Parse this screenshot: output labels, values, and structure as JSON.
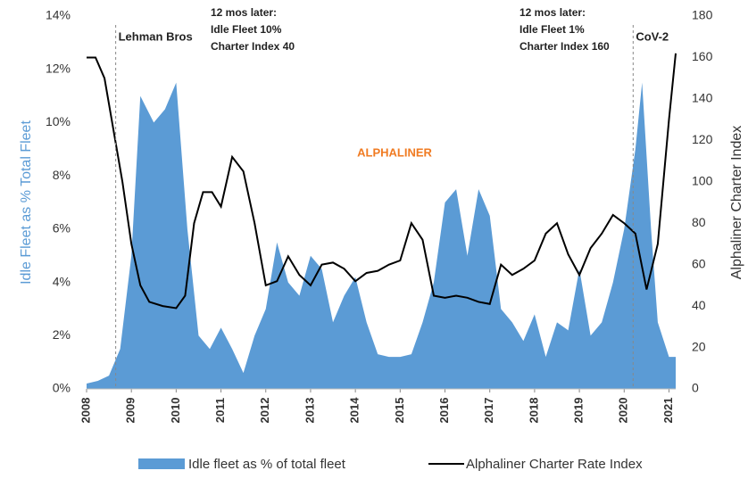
{
  "chart_data": {
    "type": "area-line",
    "y_label": "Idle Fleet as % Total Fleet",
    "y2_label": "Alphaliner Charter Index",
    "watermark": "ALPHALINER",
    "events": [
      {
        "label": "Lehman Bros",
        "x": 2008.65
      },
      {
        "label": "CoV-2",
        "x": 2020.2
      }
    ],
    "notes": [
      [
        "12 mos later:",
        "Idle Fleet 10%",
        "Charter Index 40"
      ],
      [
        "12 mos later:",
        "Idle Fleet 1%",
        "Charter Index 160"
      ]
    ],
    "xlim": [
      2008,
      2021.15
    ],
    "xticks": [
      2008,
      2009,
      2010,
      2011,
      2012,
      2013,
      2014,
      2015,
      2016,
      2017,
      2018,
      2019,
      2020,
      2021
    ],
    "ylim": [
      0,
      14
    ],
    "yticks": [
      {
        "value": 0,
        "label": "0%"
      },
      {
        "value": 2,
        "label": "2%"
      },
      {
        "value": 4,
        "label": "4%"
      },
      {
        "value": 6,
        "label": "6%"
      },
      {
        "value": 8,
        "label": "8%"
      },
      {
        "value": 10,
        "label": "10%"
      },
      {
        "value": 12,
        "label": "12%"
      },
      {
        "value": 14,
        "label": "14%"
      }
    ],
    "y2lim": [
      0,
      180
    ],
    "y2ticks": [
      0,
      20,
      40,
      60,
      80,
      100,
      120,
      140,
      160,
      180
    ],
    "series": [
      {
        "name": "Idle fleet as % of total fleet",
        "color": "#5b9bd5",
        "kind": "area",
        "x": [
          2008,
          2008.25,
          2008.5,
          2008.75,
          2009,
          2009.2,
          2009.5,
          2009.75,
          2010,
          2010.25,
          2010.5,
          2010.75,
          2011,
          2011.25,
          2011.5,
          2011.75,
          2012,
          2012.25,
          2012.5,
          2012.75,
          2013,
          2013.25,
          2013.5,
          2013.75,
          2014,
          2014.25,
          2014.5,
          2014.75,
          2015,
          2015.25,
          2015.5,
          2015.75,
          2016,
          2016.25,
          2016.5,
          2016.75,
          2017,
          2017.25,
          2017.5,
          2017.75,
          2018,
          2018.25,
          2018.5,
          2018.75,
          2019,
          2019.25,
          2019.5,
          2019.75,
          2020,
          2020.25,
          2020.4,
          2020.6,
          2020.75,
          2021,
          2021.15
        ],
        "values": [
          0.2,
          0.3,
          0.5,
          1.5,
          5,
          11,
          10,
          10.5,
          11.5,
          6,
          2,
          1.5,
          2.3,
          1.5,
          0.6,
          2,
          3,
          5.5,
          4,
          3.5,
          5,
          4.5,
          2.5,
          3.5,
          4.2,
          2.5,
          1.3,
          1.2,
          1.2,
          1.3,
          2.5,
          4,
          7,
          7.5,
          5,
          7.5,
          6.5,
          3,
          2.5,
          1.8,
          2.8,
          1.2,
          2.5,
          2.2,
          4.5,
          2,
          2.5,
          4,
          6,
          9,
          11.5,
          6,
          2.5,
          1.2,
          1.2
        ]
      },
      {
        "name": "Alphaliner Charter Rate Index",
        "color": "#000000",
        "kind": "line",
        "axis": "y2",
        "x": [
          2008,
          2008.2,
          2008.4,
          2008.6,
          2008.8,
          2009,
          2009.2,
          2009.4,
          2009.7,
          2010,
          2010.2,
          2010.4,
          2010.6,
          2010.8,
          2011,
          2011.25,
          2011.5,
          2011.75,
          2012,
          2012.25,
          2012.5,
          2012.75,
          2013,
          2013.25,
          2013.5,
          2013.75,
          2014,
          2014.25,
          2014.5,
          2014.75,
          2015,
          2015.25,
          2015.5,
          2015.75,
          2016,
          2016.25,
          2016.5,
          2016.75,
          2017,
          2017.25,
          2017.5,
          2017.75,
          2018,
          2018.25,
          2018.5,
          2018.75,
          2019,
          2019.25,
          2019.5,
          2019.75,
          2020,
          2020.25,
          2020.5,
          2020.75,
          2021,
          2021.15
        ],
        "values": [
          160,
          160,
          150,
          125,
          100,
          70,
          50,
          42,
          40,
          39,
          45,
          80,
          95,
          95,
          88,
          112,
          105,
          80,
          50,
          52,
          64,
          55,
          50,
          60,
          61,
          58,
          52,
          56,
          57,
          60,
          62,
          80,
          72,
          45,
          44,
          45,
          44,
          42,
          41,
          60,
          55,
          58,
          62,
          75,
          80,
          65,
          55,
          68,
          75,
          84,
          80,
          75,
          48,
          70,
          130,
          162
        ]
      }
    ]
  }
}
